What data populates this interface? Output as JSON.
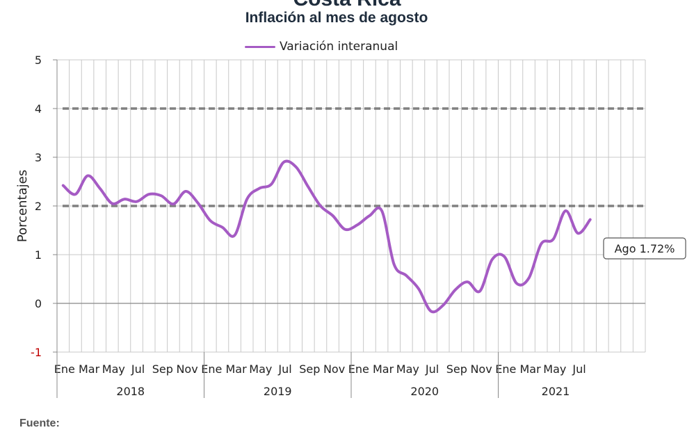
{
  "header": {
    "top_cut_text": "Costa Rica",
    "title": "Inflación al mes de agosto"
  },
  "footer": {
    "source_label": "Fuente:"
  },
  "colors": {
    "series": "#a55bc4",
    "threshold": "#808080",
    "grid": "#c8c8c8",
    "negative_tick": "#c00000"
  },
  "chart_data": {
    "type": "line",
    "title": "Inflación al mes de agosto",
    "ylabel": "Porcentajes",
    "xlabel": "",
    "ylim": [
      -1,
      5
    ],
    "yticks": [
      -1,
      0,
      1,
      2,
      3,
      4,
      5
    ],
    "grid": true,
    "legend": "top-center",
    "month_tick_labels": [
      "Ene",
      "Mar",
      "May",
      "Jul",
      "Sep",
      "Nov",
      "Ene",
      "Mar",
      "May",
      "Jul",
      "Sep",
      "Nov",
      "Ene",
      "Mar",
      "May",
      "Jul",
      "Sep",
      "Nov",
      "Ene",
      "Mar",
      "May",
      "Jul"
    ],
    "year_labels": [
      "2018",
      "2019",
      "2020",
      "2021"
    ],
    "thresholds": [
      2,
      4
    ],
    "series": [
      {
        "name": "Variación interanual",
        "x": [
          "2018-01",
          "2018-02",
          "2018-03",
          "2018-04",
          "2018-05",
          "2018-06",
          "2018-07",
          "2018-08",
          "2018-09",
          "2018-10",
          "2018-11",
          "2018-12",
          "2019-01",
          "2019-02",
          "2019-03",
          "2019-04",
          "2019-05",
          "2019-06",
          "2019-07",
          "2019-08",
          "2019-09",
          "2019-10",
          "2019-11",
          "2019-12",
          "2020-01",
          "2020-02",
          "2020-03",
          "2020-04",
          "2020-05",
          "2020-06",
          "2020-07",
          "2020-08",
          "2020-09",
          "2020-10",
          "2020-11",
          "2020-12",
          "2021-01",
          "2021-02",
          "2021-03",
          "2021-04",
          "2021-05",
          "2021-06",
          "2021-07",
          "2021-08"
        ],
        "values": [
          2.42,
          2.24,
          2.62,
          2.36,
          2.05,
          2.14,
          2.09,
          2.24,
          2.21,
          2.04,
          2.3,
          2.06,
          1.7,
          1.56,
          1.4,
          2.14,
          2.36,
          2.45,
          2.9,
          2.8,
          2.39,
          2.0,
          1.8,
          1.52,
          1.61,
          1.8,
          1.9,
          0.8,
          0.57,
          0.3,
          -0.16,
          -0.04,
          0.28,
          0.44,
          0.25,
          0.9,
          0.96,
          0.41,
          0.52,
          1.22,
          1.32,
          1.9,
          1.44,
          1.72
        ]
      }
    ],
    "annotation": {
      "text": "Ago 1.72%",
      "x": "2021-08",
      "y": 1.72
    }
  }
}
